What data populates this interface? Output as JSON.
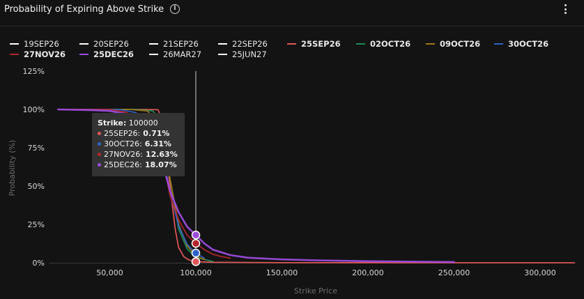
{
  "header": {
    "title": "Probability of Expiring Above Strike"
  },
  "legend": [
    {
      "label": "19SEP26",
      "color": "#ffffff",
      "bold": false
    },
    {
      "label": "20SEP26",
      "color": "#ffffff",
      "bold": false
    },
    {
      "label": "21SEP26",
      "color": "#ffffff",
      "bold": false
    },
    {
      "label": "22SEP26",
      "color": "#ffffff",
      "bold": false
    },
    {
      "label": "25SEP26",
      "color": "#e15759",
      "bold": true
    },
    {
      "label": "02OCT26",
      "color": "#1f8a5a",
      "bold": true
    },
    {
      "label": "09OCT26",
      "color": "#a07a1a",
      "bold": true
    },
    {
      "label": "30OCT26",
      "color": "#2f63c9",
      "bold": true
    },
    {
      "label": "27NOV26",
      "color": "#b3262e",
      "bold": true
    },
    {
      "label": "25DEC26",
      "color": "#9b4bdc",
      "bold": true
    },
    {
      "label": "26MAR27",
      "color": "#ffffff",
      "bold": false
    },
    {
      "label": "25JUN27",
      "color": "#ffffff",
      "bold": false
    }
  ],
  "tooltip": {
    "strike_label": "Strike:",
    "strike_value": "100000",
    "rows": [
      {
        "label": "25SEP26:",
        "value": "0.71%",
        "color": "#e15759"
      },
      {
        "label": "30OCT26:",
        "value": "6.31%",
        "color": "#2f63c9"
      },
      {
        "label": "27NOV26:",
        "value": "12.63%",
        "color": "#b3262e"
      },
      {
        "label": "25DEC26:",
        "value": "18.07%",
        "color": "#9b4bdc"
      }
    ]
  },
  "chart_data": {
    "type": "line",
    "title": "Probability of Expiring Above Strike",
    "xlabel": "Strike Price",
    "ylabel": "Probability (%)",
    "xlim": [
      45000,
      310000
    ],
    "ylim": [
      0,
      125
    ],
    "x_ticks": [
      50000,
      100000,
      150000,
      200000,
      250000,
      300000
    ],
    "x_tick_labels": [
      "50,000",
      "100,000",
      "150,000",
      "200,000",
      "250,000",
      "300,000"
    ],
    "y_ticks": [
      0,
      25,
      50,
      75,
      100,
      125
    ],
    "y_tick_labels": [
      "0%",
      "25%",
      "50%",
      "75%",
      "100%",
      "125%"
    ],
    "grid": false,
    "legend_position": "top",
    "crosshair_x": 100000,
    "series": [
      {
        "name": "25SEP26",
        "color": "#e15759",
        "x": [
          20000,
          70000,
          78000,
          80000,
          82000,
          85000,
          88000,
          90000,
          93000,
          96000,
          100000,
          110000,
          150000,
          250000,
          320000
        ],
        "y": [
          100,
          100,
          99.8,
          95,
          80,
          50,
          22,
          10,
          4,
          1.8,
          0.71,
          0.3,
          0.05,
          0,
          0
        ]
      },
      {
        "name": "02OCT26",
        "color": "#1f8a5a",
        "x": [
          20000,
          65000,
          75000,
          80000,
          85000,
          90000,
          95000,
          100000,
          110000
        ],
        "y": [
          100,
          100,
          99,
          92,
          55,
          22,
          9,
          3.5,
          0.8
        ]
      },
      {
        "name": "09OCT26",
        "color": "#a07a1a",
        "x": [
          20000,
          62000,
          72000,
          80000,
          85000,
          90000,
          95000,
          100000,
          105000
        ],
        "y": [
          100,
          100,
          99,
          88,
          55,
          25,
          11,
          4.5,
          2
        ]
      },
      {
        "name": "30OCT26",
        "color": "#2f63c9",
        "x": [
          20000,
          55000,
          65000,
          75000,
          80000,
          85000,
          90000,
          95000,
          100000,
          105000
        ],
        "y": [
          100,
          100,
          98,
          90,
          76,
          46,
          24,
          12,
          6.31,
          3
        ]
      },
      {
        "name": "27NOV26",
        "color": "#b3262e",
        "x": [
          20000,
          50000,
          60000,
          70000,
          80000,
          85000,
          90000,
          95000,
          100000,
          105000,
          110000,
          115000,
          120000
        ],
        "y": [
          100,
          100,
          98,
          92,
          72,
          44,
          28,
          18,
          12.63,
          8.5,
          5.5,
          4,
          3
        ]
      },
      {
        "name": "25DEC26",
        "color": "#9b4bdc",
        "x": [
          20000,
          40000,
          50000,
          60000,
          70000,
          80000,
          85000,
          90000,
          95000,
          100000,
          105000,
          110000,
          120000,
          130000,
          150000,
          170000,
          200000,
          250000
        ],
        "y": [
          100,
          99.5,
          99,
          97,
          90,
          68,
          47,
          33,
          23.5,
          18.07,
          12.5,
          8.5,
          5,
          3.3,
          2.2,
          1.6,
          1.0,
          0.5
        ]
      }
    ]
  }
}
